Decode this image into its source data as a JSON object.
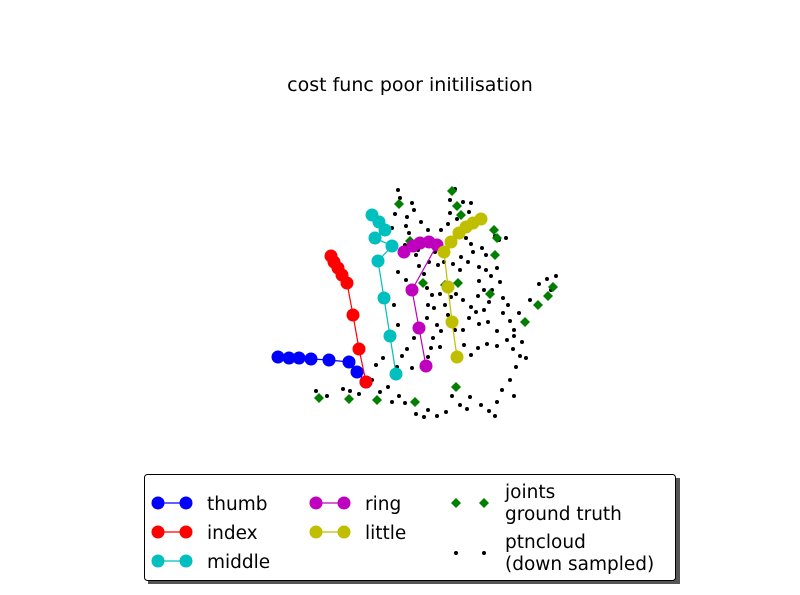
{
  "chart_data": {
    "type": "scatter",
    "title": "cost func poor initilisation",
    "xlabel": "",
    "ylabel": "",
    "axes_visible": false,
    "grid": false,
    "legend_position": "bottom",
    "series": [
      {
        "name": "thumb",
        "color": "#0000ff",
        "marker": "circle",
        "line": true,
        "points": [
          [
            278,
            357
          ],
          [
            289,
            358
          ],
          [
            299,
            358
          ],
          [
            311,
            359
          ],
          [
            329,
            360
          ],
          [
            349,
            362
          ],
          [
            357,
            372
          ],
          [
            366,
            382
          ]
        ]
      },
      {
        "name": "index",
        "color": "#ff0000",
        "marker": "circle",
        "line": true,
        "points": [
          [
            331,
            256
          ],
          [
            334,
            262
          ],
          [
            338,
            268
          ],
          [
            342,
            275
          ],
          [
            347,
            283
          ],
          [
            353,
            315
          ],
          [
            359,
            349
          ],
          [
            366,
            382
          ]
        ]
      },
      {
        "name": "middle",
        "color": "#00bfbf",
        "marker": "circle",
        "line": true,
        "points": [
          [
            372,
            215
          ],
          [
            379,
            222
          ],
          [
            385,
            230
          ],
          [
            375,
            238
          ],
          [
            392,
            246
          ],
          [
            378,
            261
          ],
          [
            384,
            298
          ],
          [
            390,
            336
          ],
          [
            396,
            374
          ]
        ]
      },
      {
        "name": "ring",
        "color": "#bf00bf",
        "marker": "circle",
        "line": true,
        "points": [
          [
            404,
            252
          ],
          [
            413,
            246
          ],
          [
            420,
            243
          ],
          [
            429,
            242
          ],
          [
            437,
            245
          ],
          [
            412,
            290
          ],
          [
            419,
            328
          ],
          [
            426,
            366
          ]
        ]
      },
      {
        "name": "little",
        "color": "#bfbf00",
        "marker": "circle",
        "line": true,
        "points": [
          [
            481,
            219
          ],
          [
            473,
            223
          ],
          [
            466,
            227
          ],
          [
            459,
            233
          ],
          [
            451,
            242
          ],
          [
            444,
            252
          ],
          [
            448,
            287
          ],
          [
            452,
            322
          ],
          [
            457,
            357
          ]
        ]
      },
      {
        "name": "joints\nground truth",
        "color": "#007f00",
        "marker": "diamond",
        "line": false,
        "points": [
          [
            319,
            398
          ],
          [
            349,
            399
          ],
          [
            377,
            400
          ],
          [
            415,
            402
          ],
          [
            456,
            387
          ],
          [
            399,
            204
          ],
          [
            410,
            241
          ],
          [
            423,
            283
          ],
          [
            445,
            285
          ],
          [
            458,
            283
          ],
          [
            452,
            191
          ],
          [
            457,
            206
          ],
          [
            461,
            215
          ],
          [
            494,
            230
          ],
          [
            497,
            238
          ],
          [
            495,
            255
          ],
          [
            490,
            294
          ],
          [
            525,
            322
          ],
          [
            538,
            305
          ],
          [
            548,
            296
          ],
          [
            553,
            287
          ]
        ]
      },
      {
        "name": "ptncloud\n(down sampled)",
        "color": "#000000",
        "marker": "point",
        "line": false,
        "points": [
          [
            398,
            190
          ],
          [
            400,
            198
          ],
          [
            412,
            203
          ],
          [
            414,
            210
          ],
          [
            407,
            217
          ],
          [
            421,
            222
          ],
          [
            392,
            228
          ],
          [
            409,
            233
          ],
          [
            428,
            230
          ],
          [
            441,
            230
          ],
          [
            448,
            224
          ],
          [
            455,
            189
          ],
          [
            450,
            200
          ],
          [
            463,
            202
          ],
          [
            471,
            203
          ],
          [
            469,
            212
          ],
          [
            478,
            218
          ],
          [
            450,
            213
          ],
          [
            457,
            219
          ],
          [
            463,
            230
          ],
          [
            466,
            238
          ],
          [
            471,
            244
          ],
          [
            473,
            252
          ],
          [
            482,
            248
          ],
          [
            486,
            255
          ],
          [
            495,
            236
          ],
          [
            499,
            240
          ],
          [
            506,
            238
          ],
          [
            497,
            268
          ],
          [
            491,
            276
          ],
          [
            479,
            281
          ],
          [
            484,
            290
          ],
          [
            492,
            290
          ],
          [
            500,
            282
          ],
          [
            508,
            305
          ],
          [
            503,
            313
          ],
          [
            510,
            321
          ],
          [
            514,
            330
          ],
          [
            507,
            340
          ],
          [
            513,
            349
          ],
          [
            520,
            356
          ],
          [
            526,
            358
          ],
          [
            516,
            367
          ],
          [
            510,
            380
          ],
          [
            502,
            390
          ],
          [
            514,
            396
          ],
          [
            497,
            402
          ],
          [
            489,
            411
          ],
          [
            495,
            416
          ],
          [
            481,
            405
          ],
          [
            470,
            397
          ],
          [
            467,
            409
          ],
          [
            460,
            405
          ],
          [
            452,
            396
          ],
          [
            446,
            412
          ],
          [
            437,
            416
          ],
          [
            428,
            410
          ],
          [
            424,
            417
          ],
          [
            416,
            414
          ],
          [
            405,
            403
          ],
          [
            399,
            396
          ],
          [
            392,
            402
          ],
          [
            388,
            387
          ],
          [
            380,
            392
          ],
          [
            372,
            380
          ],
          [
            366,
            386
          ],
          [
            359,
            394
          ],
          [
            350,
            391
          ],
          [
            343,
            389
          ],
          [
            316,
            391
          ],
          [
            327,
            396
          ],
          [
            376,
            365
          ],
          [
            383,
            358
          ],
          [
            397,
            367
          ],
          [
            402,
            356
          ],
          [
            412,
            368
          ],
          [
            428,
            357
          ],
          [
            440,
            347
          ],
          [
            433,
            338
          ],
          [
            431,
            348
          ],
          [
            437,
            325
          ],
          [
            441,
            331
          ],
          [
            427,
            318
          ],
          [
            434,
            308
          ],
          [
            445,
            305
          ],
          [
            451,
            297
          ],
          [
            456,
            294
          ],
          [
            463,
            300
          ],
          [
            471,
            307
          ],
          [
            478,
            296
          ],
          [
            484,
            310
          ],
          [
            488,
            322
          ],
          [
            497,
            331
          ],
          [
            487,
            344
          ],
          [
            497,
            346
          ],
          [
            478,
            348
          ],
          [
            471,
            355
          ],
          [
            464,
            345
          ],
          [
            463,
            330
          ],
          [
            469,
            318
          ],
          [
            419,
            266
          ],
          [
            424,
            274
          ],
          [
            429,
            262
          ],
          [
            438,
            265
          ],
          [
            416,
            255
          ],
          [
            403,
            254
          ],
          [
            398,
            272
          ],
          [
            406,
            280
          ],
          [
            394,
            305
          ],
          [
            398,
            325
          ],
          [
            407,
            349
          ],
          [
            414,
            338
          ],
          [
            428,
            305
          ],
          [
            432,
            295
          ],
          [
            453,
            264
          ],
          [
            460,
            270
          ],
          [
            461,
            257
          ],
          [
            468,
            262
          ],
          [
            479,
            267
          ],
          [
            486,
            270
          ],
          [
            476,
            312
          ],
          [
            479,
            324
          ],
          [
            489,
            302
          ],
          [
            503,
            298
          ],
          [
            539,
            284
          ],
          [
            547,
            279
          ],
          [
            556,
            276
          ],
          [
            551,
            290
          ],
          [
            530,
            300
          ],
          [
            519,
            313
          ],
          [
            514,
            336
          ],
          [
            522,
            342
          ],
          [
            405,
            245
          ],
          [
            418,
            250
          ],
          [
            435,
            252
          ],
          [
            444,
            262
          ],
          [
            427,
            288
          ],
          [
            440,
            294
          ],
          [
            448,
            315
          ],
          [
            455,
            330
          ],
          [
            406,
            226
          ],
          [
            420,
            239
          ],
          [
            433,
            246
          ],
          [
            395,
            214
          ]
        ]
      }
    ]
  }
}
